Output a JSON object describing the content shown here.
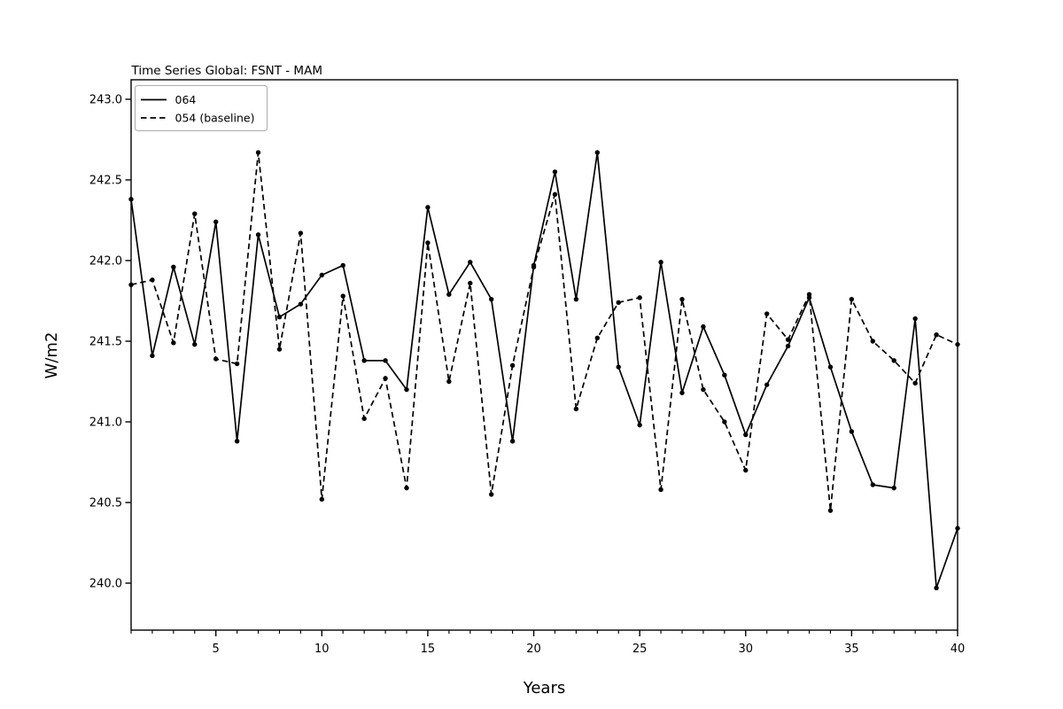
{
  "chart_data": {
    "type": "line",
    "title": "Time Series Global: FSNT - MAM",
    "xlabel": "Years",
    "ylabel": "W/m2",
    "xlim": [
      1,
      40
    ],
    "ylim": [
      239.71,
      243.12
    ],
    "xticks": [
      5,
      10,
      15,
      20,
      25,
      30,
      35,
      40
    ],
    "xtick_minor_every": 1,
    "yticks": [
      240.0,
      240.5,
      241.0,
      241.5,
      242.0,
      242.5,
      243.0
    ],
    "grid": false,
    "line_color": "#000000",
    "legend": {
      "position": "upper left",
      "entries": [
        "064",
        "054 (baseline)"
      ]
    },
    "x": [
      1,
      2,
      3,
      4,
      5,
      6,
      7,
      8,
      9,
      10,
      11,
      12,
      13,
      14,
      15,
      16,
      17,
      18,
      19,
      20,
      21,
      22,
      23,
      24,
      25,
      26,
      27,
      28,
      29,
      30,
      31,
      32,
      33,
      34,
      35,
      36,
      37,
      38,
      39,
      40
    ],
    "series": [
      {
        "name": "064",
        "line_style": "solid",
        "marker": "point",
        "values": [
          242.38,
          241.41,
          241.96,
          241.48,
          242.24,
          240.88,
          242.16,
          241.65,
          241.73,
          241.91,
          241.97,
          241.38,
          241.38,
          241.2,
          242.33,
          241.79,
          241.99,
          241.76,
          240.88,
          241.97,
          242.55,
          241.76,
          242.67,
          241.34,
          240.98,
          241.99,
          241.18,
          241.59,
          241.29,
          240.92,
          241.23,
          241.47,
          241.77,
          241.34,
          240.94,
          240.61,
          240.59,
          241.64,
          239.97,
          240.34
        ]
      },
      {
        "name": "054 (baseline)",
        "line_style": "dashed",
        "marker": "point",
        "values": [
          241.85,
          241.88,
          241.49,
          242.29,
          241.39,
          241.36,
          242.67,
          241.45,
          242.17,
          240.52,
          241.78,
          241.02,
          241.27,
          240.59,
          242.11,
          241.25,
          241.86,
          240.55,
          241.35,
          241.96,
          242.41,
          241.08,
          241.52,
          241.74,
          241.77,
          240.58,
          241.76,
          241.2,
          241.0,
          240.7,
          241.67,
          241.51,
          241.79,
          240.45,
          241.76,
          241.5,
          241.38,
          241.24,
          241.54,
          241.48
        ]
      }
    ]
  }
}
